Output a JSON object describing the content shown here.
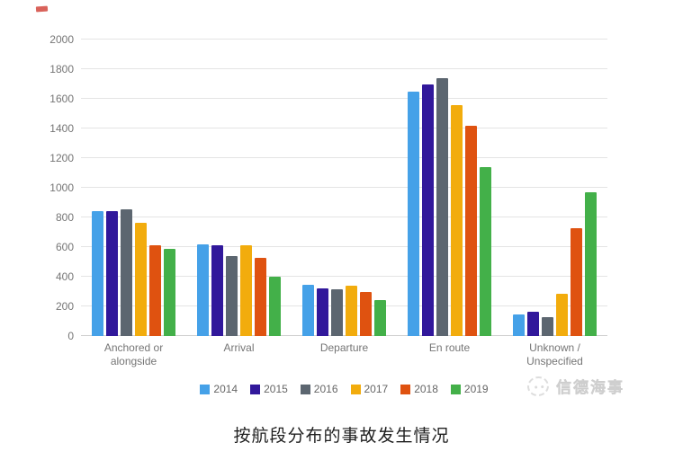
{
  "chart_data": {
    "type": "bar",
    "title": "按航段分布的事故发生情况",
    "categories": [
      "Anchored or alongside",
      "Arrival",
      "Departure",
      "En route",
      "Unknown / Unspecified"
    ],
    "series": [
      {
        "name": "2014",
        "color": "#45a1e8",
        "values": [
          840,
          620,
          345,
          1650,
          145
        ]
      },
      {
        "name": "2015",
        "color": "#31189b",
        "values": [
          845,
          610,
          320,
          1700,
          165
        ]
      },
      {
        "name": "2016",
        "color": "#5c6670",
        "values": [
          855,
          540,
          315,
          1740,
          130
        ]
      },
      {
        "name": "2017",
        "color": "#f2ac0d",
        "values": [
          765,
          615,
          340,
          1560,
          285
        ]
      },
      {
        "name": "2018",
        "color": "#df5210",
        "values": [
          615,
          525,
          300,
          1420,
          730
        ]
      },
      {
        "name": "2019",
        "color": "#43b049",
        "values": [
          590,
          400,
          240,
          1140,
          970
        ]
      }
    ],
    "xlabel": "",
    "ylabel": "",
    "ylim": [
      0,
      2000
    ],
    "ytick_step": 200,
    "grid": true,
    "legend_position": "bottom"
  },
  "watermark": {
    "text": "信德海事"
  },
  "caption": {
    "text": "按航段分布的事故发生情况"
  }
}
